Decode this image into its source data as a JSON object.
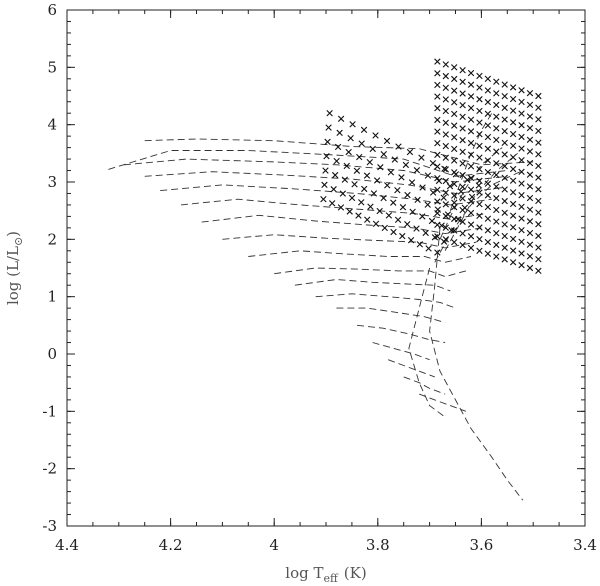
{
  "chart_data": {
    "type": "scatter",
    "title": "",
    "xlabel": {
      "main": "log T",
      "sub": "eff",
      "unit": "(K)"
    },
    "ylabel": {
      "main": "log (L/L",
      "sub": "⊙",
      "close": ")"
    },
    "xlim": [
      4.4,
      3.4
    ],
    "ylim": [
      -3,
      6
    ],
    "grid": false,
    "x_ticks": [
      4.4,
      4.2,
      4.0,
      3.8,
      3.6,
      3.4
    ],
    "x_tick_labels": [
      "4.4",
      "4.2",
      "4",
      "3.8",
      "3.6",
      "3.4"
    ],
    "y_ticks": [
      -3,
      -2,
      -1,
      0,
      1,
      2,
      3,
      4,
      5,
      6
    ],
    "y_tick_labels": [
      "-3",
      "-2",
      "-1",
      "0",
      "1",
      "2",
      "3",
      "4",
      "5",
      "6"
    ],
    "line_color": "#333333",
    "marker_color": "#111111",
    "series": [
      {
        "kind": "tracks",
        "style": "dashed",
        "lines": [
          [
            [
              4.25,
              3.72
            ],
            [
              4.15,
              3.75
            ],
            [
              4.0,
              3.72
            ],
            [
              3.85,
              3.62
            ],
            [
              3.72,
              3.58
            ],
            [
              3.6,
              3.3
            ],
            [
              3.5,
              3.35
            ]
          ],
          [
            [
              4.32,
              3.22
            ],
            [
              4.2,
              3.55
            ],
            [
              4.05,
              3.55
            ],
            [
              3.9,
              3.48
            ],
            [
              3.75,
              3.4
            ],
            [
              3.65,
              3.1
            ],
            [
              3.55,
              3.2
            ]
          ],
          [
            [
              4.29,
              3.3
            ],
            [
              4.17,
              3.4
            ],
            [
              4.0,
              3.35
            ],
            [
              3.88,
              3.3
            ],
            [
              3.75,
              3.2
            ],
            [
              3.65,
              3.0
            ],
            [
              3.55,
              3.1
            ]
          ],
          [
            [
              4.25,
              3.1
            ],
            [
              4.12,
              3.18
            ],
            [
              3.98,
              3.12
            ],
            [
              3.85,
              3.05
            ],
            [
              3.74,
              2.95
            ],
            [
              3.65,
              2.8
            ],
            [
              3.56,
              2.9
            ]
          ],
          [
            [
              4.22,
              2.85
            ],
            [
              4.1,
              2.95
            ],
            [
              3.96,
              2.88
            ],
            [
              3.84,
              2.8
            ],
            [
              3.73,
              2.7
            ],
            [
              3.66,
              2.6
            ],
            [
              3.58,
              2.7
            ]
          ],
          [
            [
              4.18,
              2.6
            ],
            [
              4.07,
              2.7
            ],
            [
              3.95,
              2.6
            ],
            [
              3.83,
              2.52
            ],
            [
              3.73,
              2.45
            ],
            [
              3.66,
              2.35
            ],
            [
              3.59,
              2.45
            ]
          ],
          [
            [
              4.14,
              2.3
            ],
            [
              4.03,
              2.42
            ],
            [
              3.92,
              2.32
            ],
            [
              3.82,
              2.25
            ],
            [
              3.73,
              2.2
            ],
            [
              3.67,
              2.1
            ],
            [
              3.6,
              2.2
            ]
          ],
          [
            [
              4.1,
              2.0
            ],
            [
              4.0,
              2.08
            ],
            [
              3.9,
              2.02
            ],
            [
              3.8,
              1.98
            ],
            [
              3.72,
              1.95
            ],
            [
              3.67,
              1.85
            ],
            [
              3.61,
              1.95
            ]
          ],
          [
            [
              4.05,
              1.7
            ],
            [
              3.95,
              1.8
            ],
            [
              3.87,
              1.75
            ],
            [
              3.78,
              1.7
            ],
            [
              3.71,
              1.7
            ],
            [
              3.67,
              1.6
            ],
            [
              3.62,
              1.7
            ]
          ],
          [
            [
              4.0,
              1.4
            ],
            [
              3.92,
              1.5
            ],
            [
              3.84,
              1.48
            ],
            [
              3.76,
              1.45
            ],
            [
              3.7,
              1.45
            ],
            [
              3.67,
              1.35
            ],
            [
              3.63,
              1.45
            ]
          ],
          [
            [
              3.96,
              1.2
            ],
            [
              3.88,
              1.3
            ],
            [
              3.81,
              1.25
            ],
            [
              3.74,
              1.22
            ],
            [
              3.69,
              1.2
            ],
            [
              3.66,
              1.1
            ]
          ],
          [
            [
              3.92,
              1.0
            ],
            [
              3.85,
              1.05
            ],
            [
              3.78,
              1.0
            ],
            [
              3.72,
              0.95
            ],
            [
              3.68,
              0.9
            ],
            [
              3.65,
              0.8
            ]
          ],
          [
            [
              3.88,
              0.8
            ],
            [
              3.82,
              0.8
            ],
            [
              3.76,
              0.72
            ],
            [
              3.71,
              0.65
            ],
            [
              3.67,
              0.55
            ]
          ],
          [
            [
              3.84,
              0.5
            ],
            [
              3.79,
              0.45
            ],
            [
              3.74,
              0.35
            ],
            [
              3.7,
              0.25
            ],
            [
              3.67,
              0.2
            ]
          ],
          [
            [
              3.81,
              0.2
            ],
            [
              3.77,
              0.1
            ],
            [
              3.73,
              0.0
            ],
            [
              3.7,
              -0.1
            ]
          ],
          [
            [
              3.78,
              -0.1
            ],
            [
              3.75,
              -0.2
            ],
            [
              3.72,
              -0.3
            ],
            [
              3.69,
              -0.4
            ]
          ],
          [
            [
              3.75,
              -0.4
            ],
            [
              3.72,
              -0.5
            ],
            [
              3.7,
              -0.6
            ],
            [
              3.67,
              -0.7
            ]
          ],
          [
            [
              3.72,
              -0.7
            ],
            [
              3.69,
              -0.8
            ],
            [
              3.66,
              -0.9
            ],
            [
              3.63,
              -1.0
            ]
          ],
          [
            [
              3.68,
              2.2
            ],
            [
              3.69,
              1.2
            ],
            [
              3.7,
              0.4
            ],
            [
              3.68,
              -0.3
            ],
            [
              3.65,
              -0.8
            ],
            [
              3.62,
              -1.3
            ],
            [
              3.58,
              -1.8
            ],
            [
              3.55,
              -2.2
            ],
            [
              3.52,
              -2.55
            ]
          ],
          [
            [
              3.7,
              1.5
            ],
            [
              3.72,
              0.8
            ],
            [
              3.74,
              0.1
            ],
            [
              3.72,
              -0.5
            ],
            [
              3.7,
              -0.9
            ],
            [
              3.67,
              -1.1
            ]
          ],
          [
            [
              3.66,
              2.5
            ],
            [
              3.64,
              3.0
            ],
            [
              3.62,
              3.5
            ],
            [
              3.6,
              3.9
            ],
            [
              3.58,
              4.2
            ]
          ],
          [
            [
              3.68,
              2.0
            ],
            [
              3.66,
              2.4
            ],
            [
              3.63,
              2.9
            ],
            [
              3.6,
              3.3
            ],
            [
              3.56,
              3.6
            ]
          ],
          [
            [
              3.67,
              1.8
            ],
            [
              3.64,
              2.3
            ],
            [
              3.61,
              2.8
            ],
            [
              3.57,
              3.2
            ],
            [
              3.53,
              3.5
            ]
          ],
          [
            [
              3.69,
              1.6
            ],
            [
              3.66,
              2.1
            ],
            [
              3.62,
              2.6
            ],
            [
              3.58,
              2.95
            ],
            [
              3.52,
              3.2
            ]
          ]
        ]
      },
      {
        "kind": "grid",
        "marker": "x",
        "rows": [
          {
            "x_start": 3.905,
            "x_end": 3.685,
            "y_start": 2.7,
            "y_end": 1.77
          },
          {
            "x_start": 3.903,
            "x_end": 3.672,
            "y_start": 2.95,
            "y_end": 1.96
          },
          {
            "x_start": 3.901,
            "x_end": 3.658,
            "y_start": 3.2,
            "y_end": 2.16
          },
          {
            "x_start": 3.899,
            "x_end": 3.645,
            "y_start": 3.45,
            "y_end": 2.35
          },
          {
            "x_start": 3.897,
            "x_end": 3.632,
            "y_start": 3.7,
            "y_end": 2.55
          },
          {
            "x_start": 3.895,
            "x_end": 3.618,
            "y_start": 3.95,
            "y_end": 2.74
          },
          {
            "x_start": 3.893,
            "x_end": 3.605,
            "y_start": 4.2,
            "y_end": 2.94
          }
        ],
        "cols_per_row": 8,
        "extra_band": {
          "x_start": 3.705,
          "x_end": 3.49,
          "y_start": 4.2,
          "y_end": 1.05,
          "rows": 16,
          "cols": 9
        }
      }
    ]
  }
}
